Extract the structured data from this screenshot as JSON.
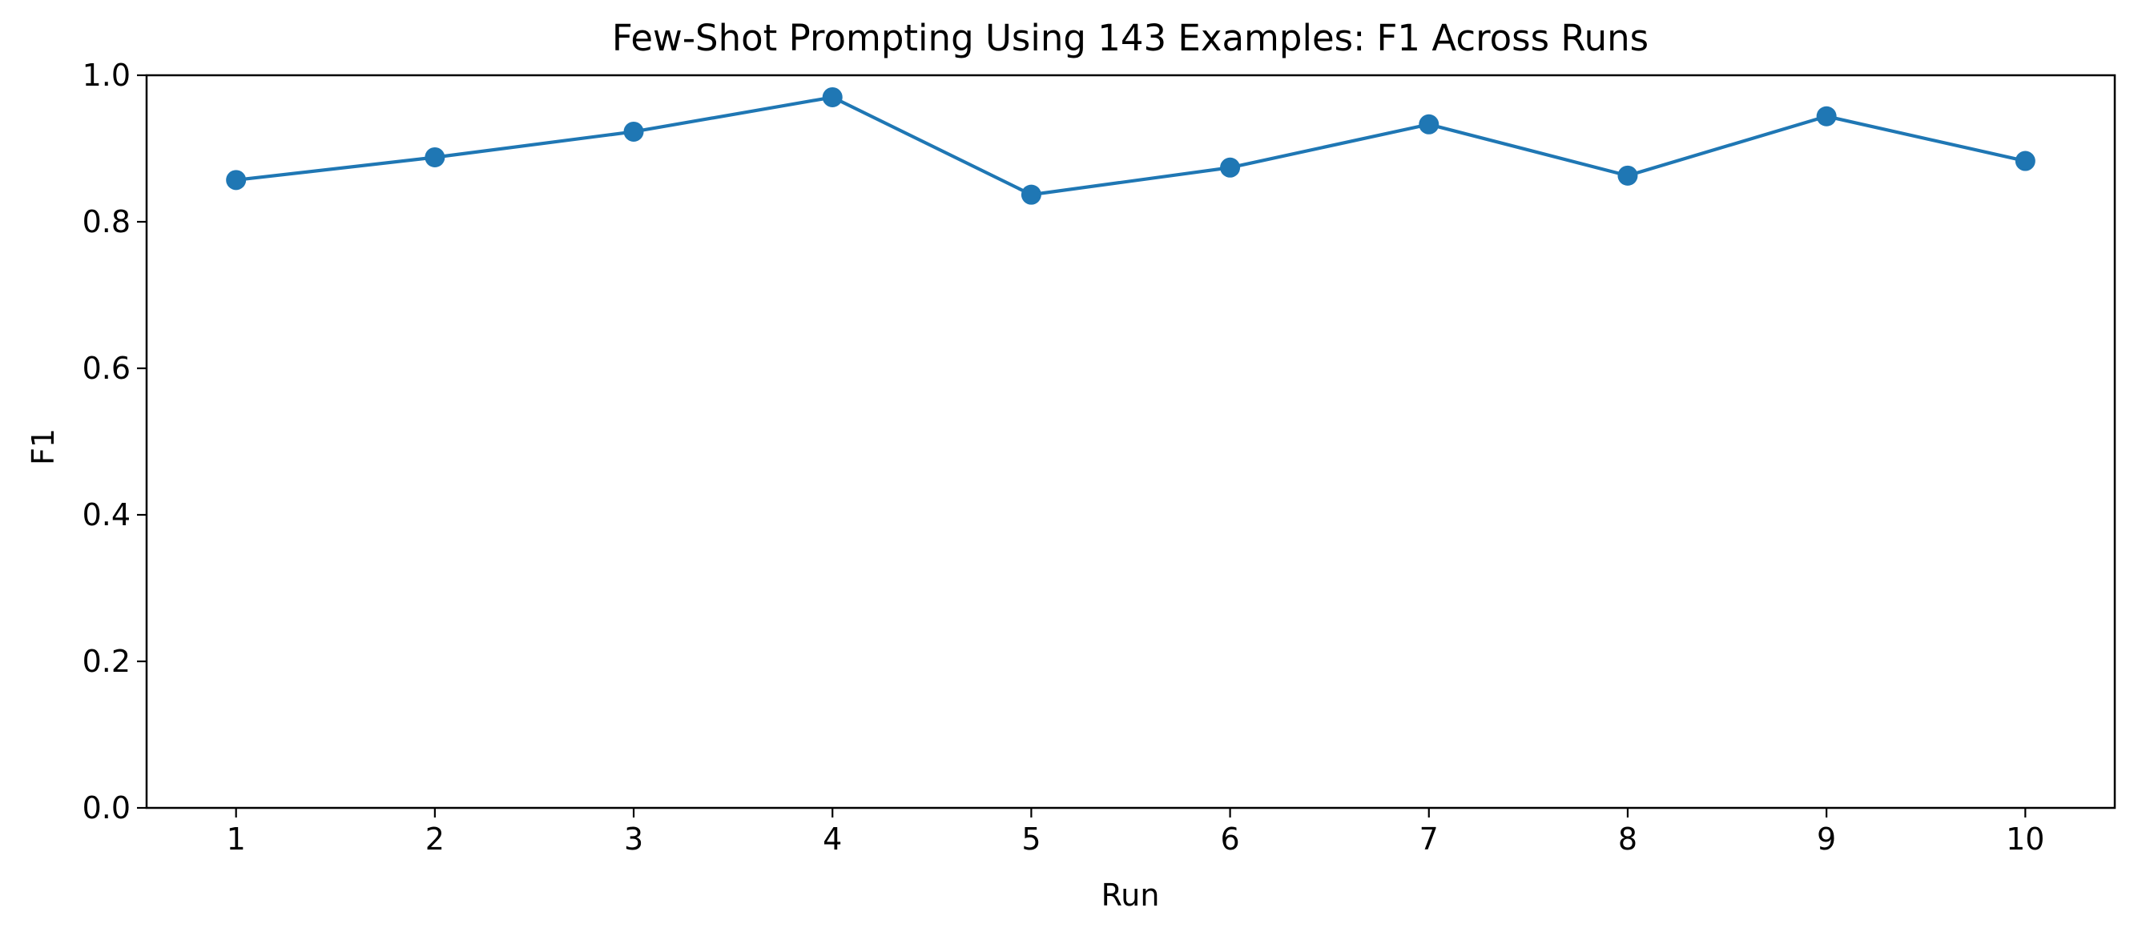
{
  "chart_data": {
    "type": "line",
    "title": "Few-Shot Prompting Using 143 Examples: F1 Across Runs",
    "xlabel": "Run",
    "ylabel": "F1",
    "x": [
      1,
      2,
      3,
      4,
      5,
      6,
      7,
      8,
      9,
      10
    ],
    "x_tick_labels": [
      "1",
      "2",
      "3",
      "4",
      "5",
      "6",
      "7",
      "8",
      "9",
      "10"
    ],
    "xlim": [
      0.55,
      10.45
    ],
    "ylim": [
      0.0,
      1.0
    ],
    "y_ticks": [
      0.0,
      0.2,
      0.4,
      0.6,
      0.8,
      1.0
    ],
    "y_tick_labels": [
      "0.0",
      "0.2",
      "0.4",
      "0.6",
      "0.8",
      "1.0"
    ],
    "grid": false,
    "series": [
      {
        "color": "#1f77b4",
        "marker": "circle",
        "values": [
          0.857,
          0.888,
          0.923,
          0.97,
          0.837,
          0.874,
          0.933,
          0.863,
          0.944,
          0.883
        ]
      }
    ]
  }
}
